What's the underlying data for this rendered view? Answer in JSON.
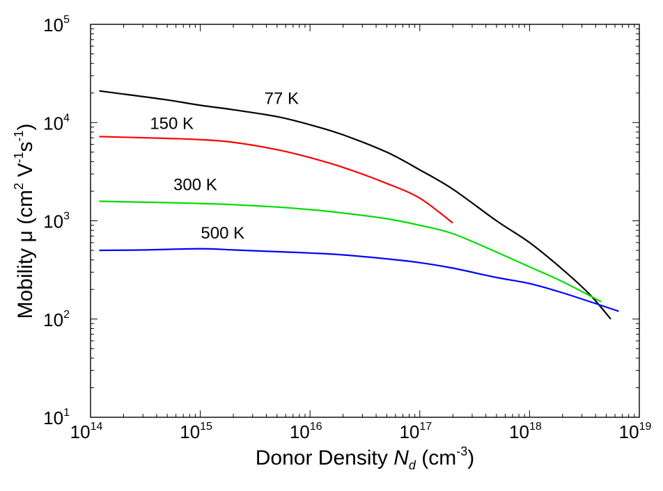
{
  "chart_data": {
    "type": "line",
    "x_scale": "log",
    "y_scale": "log",
    "xlim": [
      100000000000000.0,
      1e+19
    ],
    "ylim": [
      10,
      100000
    ],
    "grid": false,
    "legend": "none",
    "xlabel": {
      "prefix": "Donor Density ",
      "var": "N",
      "var_sub": "d",
      "unit_open": " (cm",
      "unit_sup": "-3",
      "unit_close": ")"
    },
    "ylabel": {
      "prefix": "Mobility ",
      "symbol": "μ",
      "unit_open": " (cm",
      "sup1": "2",
      "mid1": " V",
      "sup2": "-1",
      "mid2": "s",
      "sup3": "-1",
      "unit_close": ")"
    },
    "x_ticks": [
      {
        "base": "10",
        "exp": "14",
        "value": 100000000000000.0
      },
      {
        "base": "10",
        "exp": "15",
        "value": 1000000000000000.0
      },
      {
        "base": "10",
        "exp": "16",
        "value": 1e+16
      },
      {
        "base": "10",
        "exp": "17",
        "value": 1e+17
      },
      {
        "base": "10",
        "exp": "18",
        "value": 1e+18
      },
      {
        "base": "10",
        "exp": "19",
        "value": 1e+19
      }
    ],
    "y_ticks": [
      {
        "base": "10",
        "exp": "1",
        "value": 10
      },
      {
        "base": "10",
        "exp": "2",
        "value": 100
      },
      {
        "base": "10",
        "exp": "3",
        "value": 1000
      },
      {
        "base": "10",
        "exp": "4",
        "value": 10000
      },
      {
        "base": "10",
        "exp": "5",
        "value": 100000
      }
    ],
    "series": [
      {
        "name": "77 K",
        "color": "#000000",
        "label_at": [
          5500000000000000.0,
          15500
        ],
        "points": [
          [
            120000000000000.0,
            21000
          ],
          [
            200000000000000.0,
            19500
          ],
          [
            500000000000000.0,
            17000
          ],
          [
            1000000000000000.0,
            15000
          ],
          [
            2000000000000000.0,
            13500
          ],
          [
            5000000000000000.0,
            11500
          ],
          [
            1e+16,
            9500
          ],
          [
            2e+16,
            7500
          ],
          [
            5e+16,
            5000
          ],
          [
            1e+17,
            3300
          ],
          [
            2e+17,
            2100
          ],
          [
            5e+17,
            1000
          ],
          [
            1e+18,
            600
          ],
          [
            2e+18,
            320
          ],
          [
            3.5e+18,
            180
          ],
          [
            5.5e+18,
            100
          ]
        ]
      },
      {
        "name": "150 K",
        "color": "#ff0000",
        "label_at": [
          550000000000000.0,
          8600
        ],
        "points": [
          [
            120000000000000.0,
            7200
          ],
          [
            200000000000000.0,
            7100
          ],
          [
            500000000000000.0,
            6900
          ],
          [
            1000000000000000.0,
            6700
          ],
          [
            2000000000000000.0,
            6300
          ],
          [
            5000000000000000.0,
            5300
          ],
          [
            1e+16,
            4400
          ],
          [
            2e+16,
            3500
          ],
          [
            5e+16,
            2400
          ],
          [
            1e+17,
            1700
          ],
          [
            2e+17,
            950
          ]
        ]
      },
      {
        "name": "300 K",
        "color": "#00dd00",
        "label_at": [
          900000000000000.0,
          2050
        ],
        "points": [
          [
            120000000000000.0,
            1580
          ],
          [
            500000000000000.0,
            1530
          ],
          [
            1000000000000000.0,
            1500
          ],
          [
            2000000000000000.0,
            1460
          ],
          [
            5000000000000000.0,
            1380
          ],
          [
            1e+16,
            1300
          ],
          [
            2e+16,
            1200
          ],
          [
            5e+16,
            1050
          ],
          [
            1e+17,
            900
          ],
          [
            2e+17,
            740
          ],
          [
            5e+17,
            480
          ],
          [
            1e+18,
            340
          ],
          [
            2e+18,
            240
          ],
          [
            4.5e+18,
            150
          ]
        ]
      },
      {
        "name": "500 K",
        "color": "#0000ff",
        "label_at": [
          1600000000000000.0,
          660
        ],
        "points": [
          [
            120000000000000.0,
            500
          ],
          [
            300000000000000.0,
            505
          ],
          [
            1000000000000000.0,
            520
          ],
          [
            2000000000000000.0,
            505
          ],
          [
            5000000000000000.0,
            485
          ],
          [
            1e+16,
            470
          ],
          [
            2e+16,
            450
          ],
          [
            5e+16,
            410
          ],
          [
            1e+17,
            375
          ],
          [
            2e+17,
            330
          ],
          [
            5e+17,
            265
          ],
          [
            1e+18,
            230
          ],
          [
            2e+18,
            185
          ],
          [
            6.5e+18,
            120
          ]
        ]
      }
    ]
  }
}
